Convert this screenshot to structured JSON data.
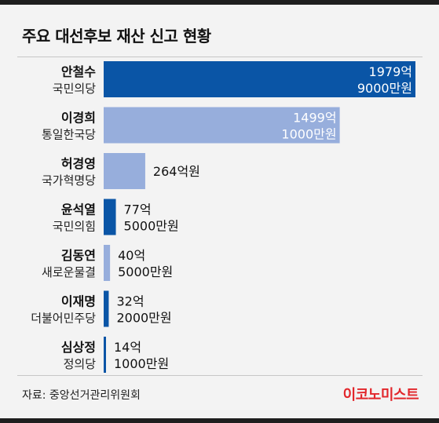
{
  "title": "주요 대선후보 재산 신고 현황",
  "source": "자료: 중앙선거관리위원회",
  "brand": "이코노미스트",
  "colors": {
    "dark_bar": "#0a55a6",
    "light_bar": "#97aedc",
    "brand": "#e2262b"
  },
  "chart_data": {
    "type": "bar",
    "orientation": "horizontal",
    "unit": "억원",
    "categories": [
      "안철수",
      "이경희",
      "허경영",
      "윤석열",
      "김동연",
      "이재명",
      "심상정"
    ],
    "parties": [
      "국민의당",
      "통일한국당",
      "국가혁명당",
      "국민의힘",
      "새로운물결",
      "더불어민주당",
      "정의당"
    ],
    "values": [
      1979.9,
      1499.1,
      264,
      77.5,
      40.5,
      32.2,
      14.1
    ],
    "value_labels": [
      [
        "1979억",
        "9000만원"
      ],
      [
        "1499억",
        "1000만원"
      ],
      [
        "264억원"
      ],
      [
        "77억",
        "5000만원"
      ],
      [
        "40억",
        "5000만원"
      ],
      [
        "32억",
        "2000만원"
      ],
      [
        "14억",
        "1000만원"
      ]
    ],
    "bar_colors": [
      "#0a55a6",
      "#97aedc",
      "#97aedc",
      "#0a55a6",
      "#97aedc",
      "#0a55a6",
      "#0a55a6"
    ],
    "xlim": [
      0,
      1979.9
    ],
    "grid": false,
    "legend": "none"
  }
}
